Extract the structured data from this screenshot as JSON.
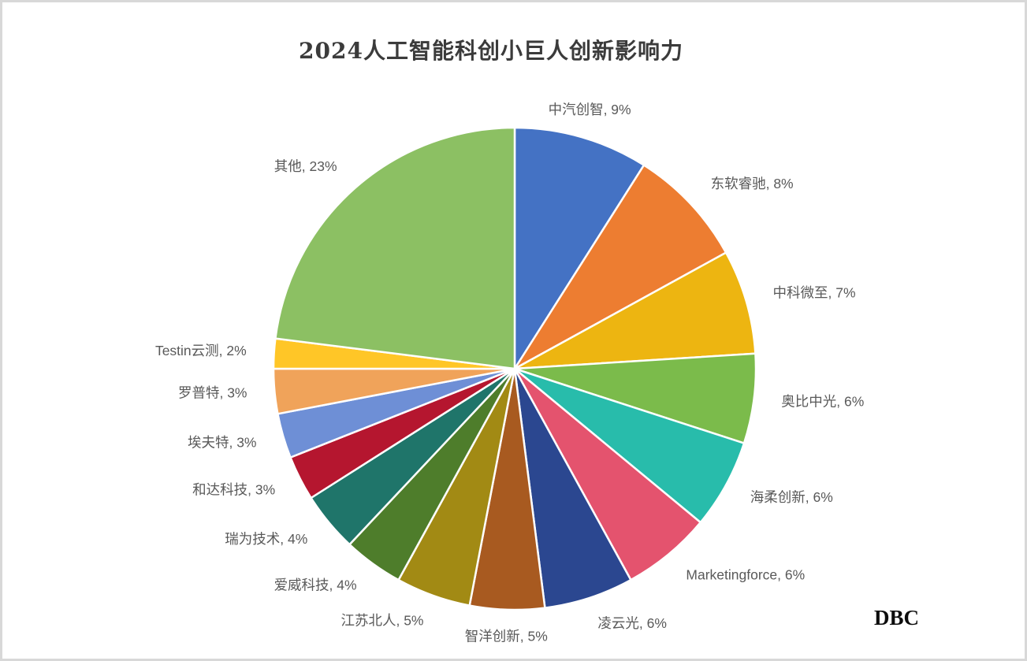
{
  "title": "2024人工智能科创小巨人创新影响力",
  "watermark": "DBC",
  "chart_data": {
    "type": "pie",
    "title": "2024人工智能科创小巨人创新影响力",
    "legend": "none",
    "labels_position": "outside",
    "label_format": "{name}, {value}%",
    "label_color": "#595959",
    "start_angle_deg": 0,
    "direction": "clockwise",
    "separator_color": "#ffffff",
    "categories": [
      "中汽创智",
      "东软睿驰",
      "中科微至",
      "奥比中光",
      "海柔创新",
      "Marketingforce",
      "凌云光",
      "智洋创新",
      "江苏北人",
      "爱威科技",
      "瑞为技术",
      "和达科技",
      "埃夫特",
      "罗普特",
      "Testin云测",
      "其他"
    ],
    "values": [
      9,
      8,
      7,
      6,
      6,
      6,
      6,
      5,
      5,
      4,
      4,
      3,
      3,
      3,
      2,
      23
    ],
    "colors": [
      "#4472C4",
      "#ED7D31",
      "#EDB511",
      "#7BBB4B",
      "#28BCAB",
      "#E4536E",
      "#2B4790",
      "#A85A20",
      "#A28A14",
      "#4E7D2B",
      "#1F756A",
      "#B5162F",
      "#6E8FD6",
      "#F0A35A",
      "#FFC627",
      "#8CC063"
    ]
  }
}
